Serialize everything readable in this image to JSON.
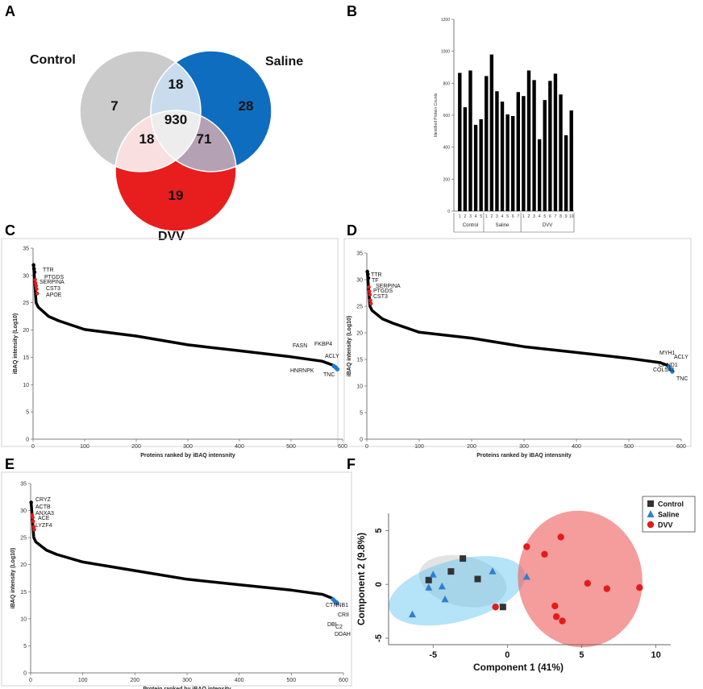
{
  "panel_labels": {
    "a": "A",
    "b": "B",
    "c": "C",
    "d": "D",
    "e": "E",
    "f": "F"
  },
  "chart_data": [
    {
      "type": "venn",
      "panel": "A",
      "sets": [
        "Control",
        "Saline",
        "DVV"
      ],
      "set_colors": {
        "Control": "#cbcbcb",
        "Saline": "#0f6dbf",
        "DVV": "#e81e1e"
      },
      "regions": [
        {
          "sets": [
            "Control"
          ],
          "value": 7
        },
        {
          "sets": [
            "Saline"
          ],
          "value": 28
        },
        {
          "sets": [
            "DVV"
          ],
          "value": 19
        },
        {
          "sets": [
            "Control",
            "Saline"
          ],
          "value": 18
        },
        {
          "sets": [
            "Control",
            "DVV"
          ],
          "value": 18
        },
        {
          "sets": [
            "Saline",
            "DVV"
          ],
          "value": 71
        },
        {
          "sets": [
            "Control",
            "Saline",
            "DVV"
          ],
          "value": 930
        }
      ]
    },
    {
      "type": "bar",
      "panel": "B",
      "ylabel": "Identified Protein Counts",
      "ylim": [
        0,
        1200
      ],
      "yticks": [
        0,
        200,
        400,
        600,
        800,
        1000,
        1200
      ],
      "groups": [
        {
          "name": "Control",
          "labels": [
            "1",
            "2",
            "3",
            "4",
            "5"
          ],
          "values": [
            865,
            650,
            880,
            540,
            575
          ]
        },
        {
          "name": "Saline",
          "labels": [
            "1",
            "2",
            "3",
            "4",
            "5",
            "6",
            "7"
          ],
          "values": [
            845,
            980,
            750,
            685,
            605,
            595,
            745
          ]
        },
        {
          "name": "DVV",
          "labels": [
            "1",
            "2",
            "3",
            "4",
            "5",
            "6",
            "7",
            "8",
            "9",
            "10"
          ],
          "values": [
            720,
            880,
            820,
            450,
            695,
            815,
            860,
            730,
            475,
            630
          ]
        }
      ]
    },
    {
      "type": "line",
      "panel": "C",
      "xlabel": "Proteins ranked by iBAQ intensnity",
      "ylabel": "iBAQ intensity (Log10)",
      "xlim": [
        0,
        600
      ],
      "ylim": [
        0,
        35
      ],
      "xticks": [
        0,
        100,
        200,
        300,
        400,
        500,
        600
      ],
      "yticks": [
        0,
        5,
        10,
        15,
        20,
        25,
        30,
        35
      ],
      "n": 590,
      "curve": [
        [
          1,
          32
        ],
        [
          6,
          25
        ],
        [
          10,
          24.2
        ],
        [
          30,
          22.5
        ],
        [
          50,
          21.7
        ],
        [
          100,
          20.1
        ],
        [
          200,
          18.9
        ],
        [
          300,
          17.3
        ],
        [
          400,
          16.2
        ],
        [
          500,
          15.1
        ],
        [
          560,
          14.3
        ],
        [
          580,
          13.6
        ],
        [
          590,
          12.9
        ]
      ],
      "top_points": [
        [
          1,
          31.9
        ],
        [
          2,
          31.2
        ],
        [
          3,
          30.6
        ]
      ],
      "red_points": [
        [
          4,
          29.2
        ],
        [
          5,
          28.6
        ],
        [
          6,
          28.1
        ],
        [
          7,
          27.5
        ],
        [
          8,
          26.7
        ]
      ],
      "blue_points": [
        [
          583,
          13.4
        ],
        [
          586,
          13.2
        ],
        [
          588,
          13.0
        ],
        [
          590,
          12.8
        ]
      ],
      "annotations_top": [
        "TTR",
        "PTGDS",
        "SERPINA",
        "CST3",
        "APOE"
      ],
      "annotations_bottom": [
        "FASN",
        "FKBP4",
        "ACLY",
        "HNRNPK",
        "TNC"
      ]
    },
    {
      "type": "line",
      "panel": "D",
      "xlabel": "Proteins ranked by iBAQ intensnity",
      "ylabel": "iBAQ intensity (Log10)",
      "xlim": [
        0,
        600
      ],
      "ylim": [
        0,
        35
      ],
      "xticks": [
        0,
        100,
        200,
        300,
        400,
        500,
        600
      ],
      "yticks": [
        0,
        5,
        10,
        15,
        20,
        25,
        30,
        35
      ],
      "n": 583,
      "curve": [
        [
          1,
          31.5
        ],
        [
          6,
          25
        ],
        [
          10,
          24.2
        ],
        [
          30,
          22.6
        ],
        [
          50,
          21.8
        ],
        [
          100,
          20.1
        ],
        [
          200,
          19
        ],
        [
          300,
          17.4
        ],
        [
          400,
          16.3
        ],
        [
          500,
          15.2
        ],
        [
          560,
          14.4
        ],
        [
          575,
          13.8
        ],
        [
          583,
          12.9
        ]
      ],
      "top_points": [
        [
          1,
          31.5
        ],
        [
          2,
          31.0
        ],
        [
          3,
          30.3
        ]
      ],
      "red_points": [
        [
          4,
          28.6
        ],
        [
          5,
          27.8
        ],
        [
          6,
          27.2
        ],
        [
          7,
          26.1
        ],
        [
          8,
          25.5
        ]
      ],
      "blue_points": [
        [
          576,
          13.6
        ],
        [
          579,
          13.3
        ],
        [
          581,
          13.0
        ],
        [
          583,
          12.7
        ]
      ],
      "annotations_top": [
        "TTR",
        "TF",
        "SERPINA",
        "PTGDS",
        "CST3"
      ],
      "annotations_bottom": [
        "MYH1",
        "ACLY",
        "CAND1",
        "COL5A1",
        "TNC"
      ]
    },
    {
      "type": "line",
      "panel": "E",
      "xlabel": "Protein ranked by iBAQ intensity",
      "ylabel": "iBAQ intensity (Log10)",
      "xlim": [
        0,
        600
      ],
      "ylim": [
        0,
        35
      ],
      "xticks": [
        0,
        100,
        200,
        300,
        400,
        500,
        600
      ],
      "yticks": [
        0,
        5,
        10,
        15,
        20,
        25,
        30,
        35
      ],
      "n": 588,
      "curve": [
        [
          1,
          31.5
        ],
        [
          6,
          25
        ],
        [
          10,
          24.2
        ],
        [
          30,
          22.7
        ],
        [
          50,
          21.9
        ],
        [
          100,
          20.5
        ],
        [
          200,
          18.9
        ],
        [
          300,
          17.3
        ],
        [
          400,
          16.3
        ],
        [
          500,
          15.3
        ],
        [
          560,
          14.5
        ],
        [
          578,
          13.8
        ],
        [
          588,
          13.0
        ]
      ],
      "top_points": [
        [
          1,
          31.5
        ]
      ],
      "red_points": [
        [
          3,
          29.2
        ],
        [
          4,
          28.7
        ],
        [
          5,
          28.0
        ],
        [
          6,
          27.0
        ],
        [
          7,
          26.5
        ]
      ],
      "blue_points": [
        [
          580,
          13.6
        ],
        [
          583,
          13.3
        ],
        [
          586,
          13.1
        ],
        [
          588,
          12.9
        ]
      ],
      "annotations_top": [
        "CRYZ",
        "ACTB",
        "ANXA3",
        "ACE",
        "LYZF4"
      ],
      "annotations_bottom": [
        "CTNNB1",
        "CRII",
        "DBI",
        "C2",
        "DDAH"
      ]
    },
    {
      "type": "scatter",
      "panel": "F",
      "xlabel": "Component 1 (41%)",
      "ylabel": "Component 2 (9.8%)",
      "xlim": [
        -8,
        11
      ],
      "ylim": [
        -5.6,
        6.6
      ],
      "xticks": [
        -5,
        0,
        5,
        10
      ],
      "yticks": [
        -5,
        0,
        5
      ],
      "legend": [
        "Control",
        "Saline",
        "DVV"
      ],
      "legend_position": "top-right",
      "series": [
        {
          "name": "Control",
          "marker": "square",
          "color": "#333333",
          "ellipse_color": "#d0d0d0",
          "points": [
            [
              -3,
              2.4
            ],
            [
              -5.3,
              0.4
            ],
            [
              -3.8,
              1.2
            ],
            [
              -2,
              0.5
            ],
            [
              -0.3,
              -2.1
            ]
          ]
        },
        {
          "name": "Saline",
          "marker": "triangle",
          "color": "#2f7fcf",
          "ellipse_color": "#5ac0ee",
          "points": [
            [
              -6.4,
              -2.8
            ],
            [
              -5.3,
              -0.3
            ],
            [
              -5,
              0.9
            ],
            [
              -4.4,
              -0.2
            ],
            [
              -4.2,
              -1.4
            ],
            [
              -1,
              1.2
            ],
            [
              1.3,
              0.7
            ]
          ]
        },
        {
          "name": "DVV",
          "marker": "circle",
          "color": "#e21c1c",
          "ellipse_color": "#ef5a5a",
          "points": [
            [
              1.3,
              3.5
            ],
            [
              3.6,
              4.4
            ],
            [
              2.5,
              2.8
            ],
            [
              5.4,
              0.1
            ],
            [
              6.7,
              -0.4
            ],
            [
              8.9,
              -0.3
            ],
            [
              3.2,
              -2
            ],
            [
              3.3,
              -3
            ],
            [
              3.7,
              -3.4
            ],
            [
              -0.8,
              -2.1
            ]
          ]
        }
      ]
    }
  ]
}
